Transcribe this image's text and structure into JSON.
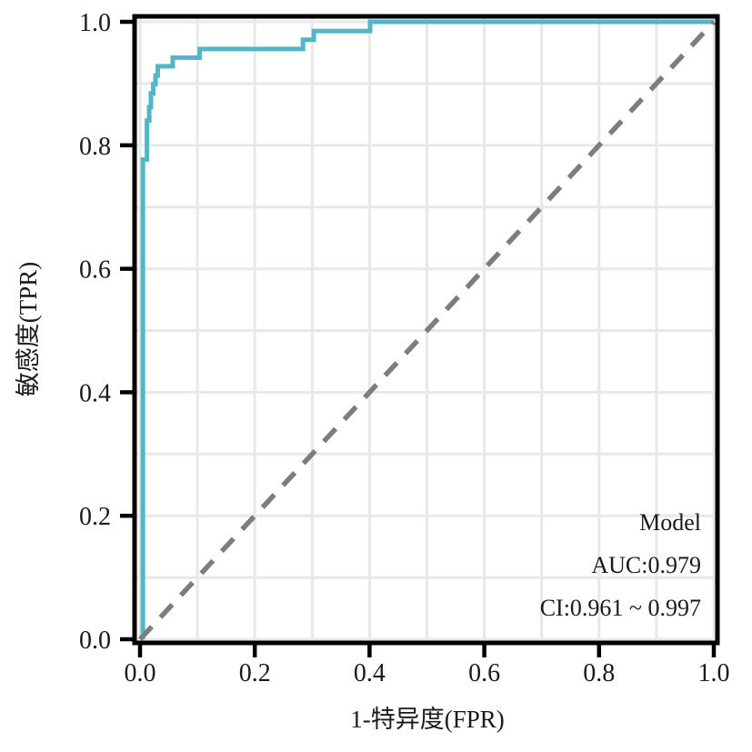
{
  "figure": {
    "background_color": "#ffffff",
    "panel_background_color": "#ffffff",
    "grid_color": "#e8e8e8",
    "frame_color": "#000000",
    "text_color": "#1a1a1a"
  },
  "chart_data": {
    "type": "line",
    "subtype": "roc-curve",
    "title": "",
    "xlabel": "1-特异度(FPR)",
    "ylabel": "敏感度(TPR)",
    "xlim": [
      0.0,
      1.0
    ],
    "ylim": [
      0.0,
      1.0
    ],
    "grid": true,
    "grid_interval": 0.1,
    "grid_values": [
      0,
      0.1,
      0.2,
      0.3,
      0.4,
      0.5,
      0.6,
      0.7,
      0.8,
      0.9,
      1.0
    ],
    "x_ticks": [
      {
        "v": 0.0,
        "label": "0.0"
      },
      {
        "v": 0.2,
        "label": "0.2"
      },
      {
        "v": 0.4,
        "label": "0.4"
      },
      {
        "v": 0.6,
        "label": "0.6"
      },
      {
        "v": 0.8,
        "label": "0.8"
      },
      {
        "v": 1.0,
        "label": "1.0"
      }
    ],
    "y_ticks": [
      {
        "v": 0.0,
        "label": "0.0"
      },
      {
        "v": 0.2,
        "label": "0.2"
      },
      {
        "v": 0.4,
        "label": "0.4"
      },
      {
        "v": 0.6,
        "label": "0.6"
      },
      {
        "v": 0.8,
        "label": "0.8"
      },
      {
        "v": 1.0,
        "label": "1.0"
      }
    ],
    "series": [
      {
        "name": "Model",
        "style": "step",
        "color": "#52b6c9",
        "width": 5,
        "points": [
          [
            0.005,
            0.0
          ],
          [
            0.005,
            0.777
          ],
          [
            0.012,
            0.777
          ],
          [
            0.012,
            0.84
          ],
          [
            0.016,
            0.84
          ],
          [
            0.016,
            0.862
          ],
          [
            0.019,
            0.862
          ],
          [
            0.019,
            0.884
          ],
          [
            0.023,
            0.884
          ],
          [
            0.023,
            0.899
          ],
          [
            0.027,
            0.899
          ],
          [
            0.027,
            0.913
          ],
          [
            0.031,
            0.913
          ],
          [
            0.031,
            0.928
          ],
          [
            0.057,
            0.928
          ],
          [
            0.057,
            0.942
          ],
          [
            0.104,
            0.942
          ],
          [
            0.104,
            0.956
          ],
          [
            0.284,
            0.956
          ],
          [
            0.284,
            0.971
          ],
          [
            0.303,
            0.971
          ],
          [
            0.303,
            0.985
          ],
          [
            0.401,
            0.985
          ],
          [
            0.401,
            1.0
          ],
          [
            1.0,
            1.0
          ]
        ]
      },
      {
        "name": "reference-diagonal",
        "style": "dashed",
        "color": "#7d7d7d",
        "width": 5.5,
        "dash": [
          19,
          14
        ],
        "points": [
          [
            0.0,
            0.0
          ],
          [
            1.0,
            1.0
          ]
        ]
      }
    ],
    "annotations": [
      {
        "text": "Model"
      },
      {
        "text": "AUC:0.979"
      },
      {
        "text": "CI:0.961 ~ 0.997"
      }
    ],
    "auc": 0.979,
    "ci_low": 0.961,
    "ci_high": 0.997,
    "legend_position": "inside-bottom-right"
  }
}
